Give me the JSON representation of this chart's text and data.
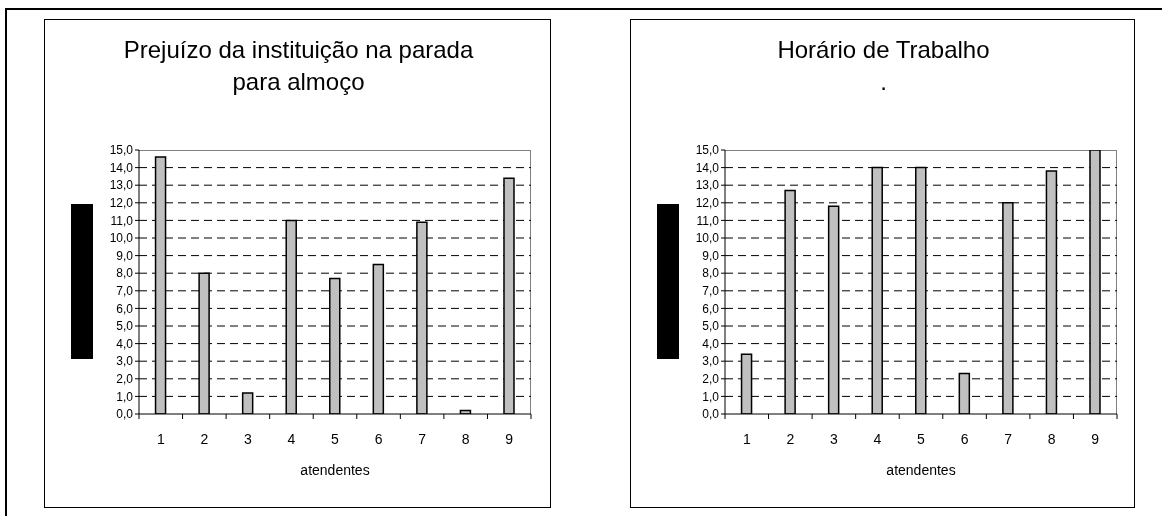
{
  "chart_data": [
    {
      "type": "bar",
      "title": "Prejuízo da instituição na parada para almoço",
      "xlabel": "atendentes",
      "categories": [
        "1",
        "2",
        "3",
        "4",
        "5",
        "6",
        "7",
        "8",
        "9"
      ],
      "values": [
        14.6,
        8.0,
        1.2,
        11.0,
        7.7,
        8.5,
        10.9,
        0.2,
        13.4
      ],
      "color": "#c0c0c0",
      "ylim": [
        0,
        15
      ],
      "yticks": [
        {
          "value": 0,
          "label": "0,0"
        },
        {
          "value": 1,
          "label": "1,0"
        },
        {
          "value": 2,
          "label": "2,0"
        },
        {
          "value": 3,
          "label": "3,0"
        },
        {
          "value": 4,
          "label": "4,0"
        },
        {
          "value": 5,
          "label": "5,0"
        },
        {
          "value": 6,
          "label": "6,0"
        },
        {
          "value": 7,
          "label": "7,0"
        },
        {
          "value": 8,
          "label": "8,0"
        },
        {
          "value": 9,
          "label": "9,0"
        },
        {
          "value": 10,
          "label": "10,0"
        },
        {
          "value": 11,
          "label": "11,0"
        },
        {
          "value": 12,
          "label": "12,0"
        },
        {
          "value": 13,
          "label": "13,0"
        },
        {
          "value": 14,
          "label": "14,0"
        },
        {
          "value": 15,
          "label": "15,0"
        }
      ],
      "grid": "y"
    },
    {
      "type": "bar",
      "title": "Horário de Trabalho",
      "subtitle": ".",
      "xlabel": "atendentes",
      "categories": [
        "1",
        "2",
        "3",
        "4",
        "5",
        "6",
        "7",
        "8",
        "9"
      ],
      "values": [
        3.4,
        12.7,
        11.8,
        14.0,
        14.0,
        2.3,
        12.0,
        13.8,
        15.0
      ],
      "color": "#c0c0c0",
      "ylim": [
        0,
        15
      ],
      "yticks": [
        {
          "value": 0,
          "label": "0,0"
        },
        {
          "value": 1,
          "label": "1,0"
        },
        {
          "value": 2,
          "label": "2,0"
        },
        {
          "value": 3,
          "label": "3,0"
        },
        {
          "value": 4,
          "label": "4,0"
        },
        {
          "value": 5,
          "label": "5,0"
        },
        {
          "value": 6,
          "label": "6,0"
        },
        {
          "value": 7,
          "label": "7,0"
        },
        {
          "value": 8,
          "label": "8,0"
        },
        {
          "value": 9,
          "label": "9,0"
        },
        {
          "value": 10,
          "label": "10,0"
        },
        {
          "value": 11,
          "label": "11,0"
        },
        {
          "value": 12,
          "label": "12,0"
        },
        {
          "value": 13,
          "label": "13,0"
        },
        {
          "value": 14,
          "label": "14,0"
        },
        {
          "value": 15,
          "label": "15,0"
        }
      ],
      "grid": "y"
    }
  ]
}
